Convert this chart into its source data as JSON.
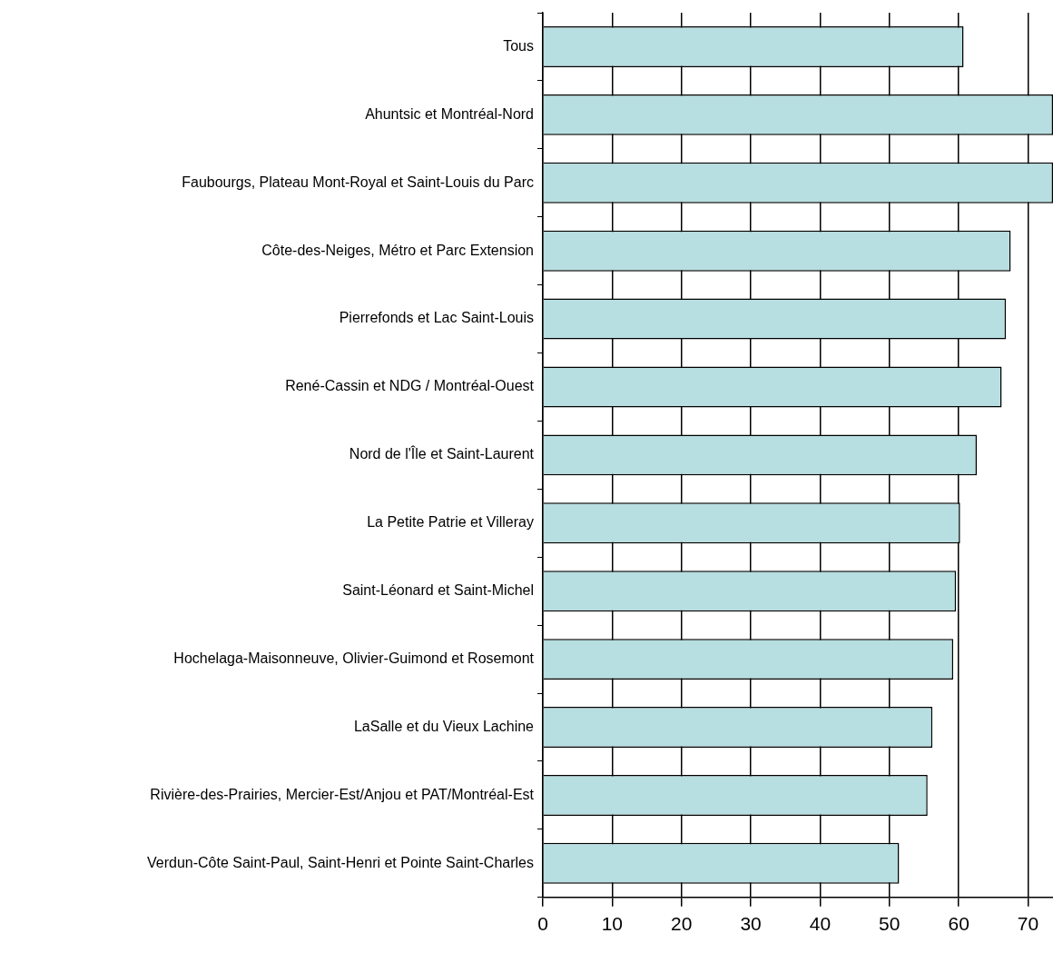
{
  "chart_data": {
    "type": "bar",
    "orientation": "horizontal",
    "categories": [
      "Tous",
      "Ahuntsic et Montréal-Nord",
      "Faubourgs, Plateau Mont-Royal et Saint-Louis du Parc",
      "Côte-des-Neiges, Métro et Parc Extension",
      "Pierrefonds et Lac Saint-Louis",
      "René-Cassin et NDG / Montréal-Ouest",
      "Nord de l'Île et Saint-Laurent",
      "La Petite Patrie et Villeray",
      "Saint-Léonard et Saint-Michel",
      "Hochelaga-Maisonneuve, Olivier-Guimond et Rosemont",
      "LaSalle et du Vieux Lachine",
      "Rivière-des-Prairies, Mercier-Est/Anjou et PAT/Montréal-Est",
      "Verdun-Côte Saint-Paul, Saint-Henri et Pointe Saint-Charles"
    ],
    "values": [
      60.7,
      73.6,
      73.6,
      67.5,
      66.8,
      66.2,
      62.6,
      60.2,
      59.6,
      59.2,
      56.2,
      55.5,
      51.4
    ],
    "color": "#b7dee0",
    "xlim": [
      0,
      73.6
    ],
    "xticks": [
      0,
      10,
      20,
      30,
      40,
      50,
      60,
      70
    ],
    "grid": "x"
  }
}
